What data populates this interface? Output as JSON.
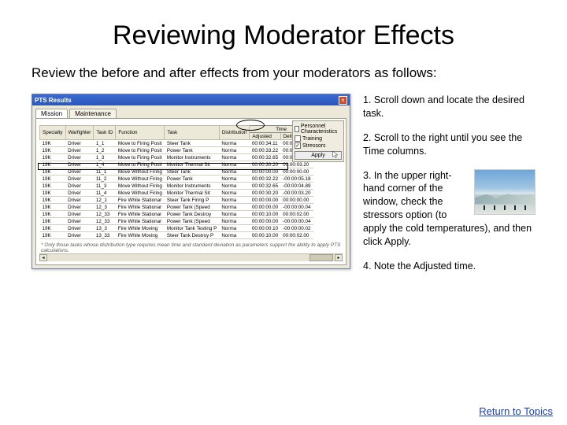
{
  "title": "Reviewing Moderator Effects",
  "subtitle": "Review the before and after effects from your moderators as follows:",
  "steps": {
    "s1": "1. Scroll down and locate the desired task.",
    "s2": "2. Scroll to the right until you see the Time columns.",
    "s3": "3.  In the upper right-hand corner of the window, check the stressors option (to apply the cold temperatures), and then click Apply.",
    "s4": "4.  Note the Adjusted time."
  },
  "return_link": "Return to Topics",
  "xp": {
    "title": "PTS Results",
    "tabs": {
      "t1": "Mission",
      "t2": "Maintenance"
    },
    "checks": {
      "c1": "Personnel Characteristics",
      "c2": "Training",
      "c3": "Stressors"
    },
    "apply": "Apply",
    "columns": {
      "specialty": "Specialty",
      "warfighter": "Warfighter",
      "taskid": "Task ID",
      "func": "Function",
      "task": "Task",
      "dist": "Distribution",
      "time_group": "Time",
      "adjusted": "Adjusted",
      "delta": "Delta"
    },
    "rows": [
      {
        "sp": "19K",
        "wf": "Driver",
        "tid": "1_1",
        "fn": "Move to Firing Posit",
        "tk": "Steer Tank",
        "ds": "Norma",
        "adj": "00:00:34.11",
        "dl": "00:00:06.11"
      },
      {
        "sp": "19K",
        "wf": "Driver",
        "tid": "1_2",
        "fn": "Move to Firing Posit",
        "tk": "Power Tank",
        "ds": "Norma",
        "adj": "00:00:33.22",
        "dl": "00:00:05.18"
      },
      {
        "sp": "19K",
        "wf": "Driver",
        "tid": "1_3",
        "fn": "Move to Firing Posit",
        "tk": "Monitor Instruments",
        "ds": "Norma",
        "adj": "00:00:32.65",
        "dl": "00:00:04.89"
      },
      {
        "sp": "19K",
        "wf": "Driver",
        "tid": "1_4",
        "fn": "Move to Firing Posit",
        "tk": "Monitor Thermal Sit",
        "ds": "Norma",
        "adj": "00:00:30.20",
        "dl": "00:00:03.20"
      },
      {
        "sp": "19K",
        "wf": "Driver",
        "tid": "11_1",
        "fn": "Move Without Firing",
        "tk": "Steer Tank",
        "ds": "Norma",
        "adj": "00:00:00.00",
        "dl": "00:00:00.00"
      },
      {
        "sp": "19K",
        "wf": "Driver",
        "tid": "11_2",
        "fn": "Move Without Firing",
        "tk": "Power Tank",
        "ds": "Norma",
        "adj": "00:00:32.22",
        "dl": "-00:00:05.18"
      },
      {
        "sp": "19K",
        "wf": "Driver",
        "tid": "11_3",
        "fn": "Move Without Firing",
        "tk": "Monitor Instruments",
        "ds": "Norma",
        "adj": "00:00:32.65",
        "dl": "-00:00:04.89"
      },
      {
        "sp": "19K",
        "wf": "Driver",
        "tid": "11_4",
        "fn": "Move Without Firing",
        "tk": "Monitor Thermal Sit",
        "ds": "Norma",
        "adj": "00:00:30.20",
        "dl": "-00:00:03.20"
      },
      {
        "sp": "19K",
        "wf": "Driver",
        "tid": "12_1",
        "fn": "Fire While Stationar",
        "tk": "Steer Tank Firing P",
        "ds": "Norma",
        "adj": "00:00:00.00",
        "dl": "00:00:00.00"
      },
      {
        "sp": "19K",
        "wf": "Driver",
        "tid": "12_3",
        "fn": "Fire While Stationar",
        "tk": "Power Tank (Speed",
        "ds": "Norma",
        "adj": "00:00:00.00",
        "dl": "-00:00:00.04"
      },
      {
        "sp": "19K",
        "wf": "Driver",
        "tid": "12_33",
        "fn": "Fire While Stationar",
        "tk": "Power Tank Destroy",
        "ds": "Norma",
        "adj": "00:00:10.00",
        "dl": "00:00:02.00"
      },
      {
        "sp": "19K",
        "wf": "Driver",
        "tid": "12_33",
        "fn": "Fire While Stationar",
        "tk": "Power Tank (Speed",
        "ds": "Norma",
        "adj": "00:00:00.00",
        "dl": "-00:00:00.04"
      },
      {
        "sp": "19K",
        "wf": "Driver",
        "tid": "13_3",
        "fn": "Fire While Moving",
        "tk": "Monitor Tank Testing P",
        "ds": "Norma",
        "adj": "00:00:00.10",
        "dl": "-00:00:00.02"
      },
      {
        "sp": "19K",
        "wf": "Driver",
        "tid": "13_33",
        "fn": "Fire While Moving",
        "tk": "Steer Tank Destroy P",
        "ds": "Norma",
        "adj": "00:00:10.00",
        "dl": "00:00:02.00"
      }
    ],
    "footnote": "* Only those tasks whose distribution type requires mean time and standard deviation as parameters support the ability to apply PTS calculations."
  }
}
